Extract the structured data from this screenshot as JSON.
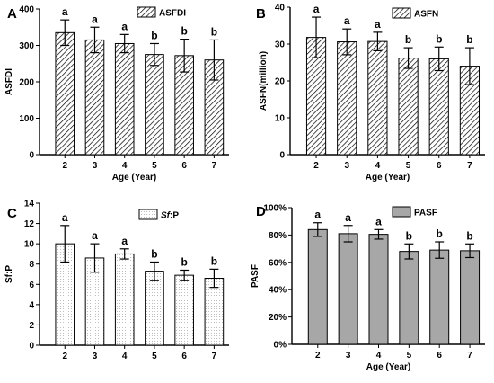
{
  "chart_data": [
    {
      "panel": "A",
      "type": "bar",
      "legend": "ASFDI",
      "categories": [
        "2",
        "3",
        "4",
        "5",
        "6",
        "7"
      ],
      "values": [
        335,
        315,
        305,
        275,
        272,
        260
      ],
      "errors": [
        35,
        35,
        25,
        30,
        45,
        55
      ],
      "letters": [
        "a",
        "a",
        "a",
        "b",
        "b",
        "b"
      ],
      "xlabel": "Age (Year)",
      "ylabel": "ASFDI",
      "ylim": [
        0,
        400
      ],
      "yticks": [
        "0",
        "100",
        "200",
        "300",
        "400"
      ],
      "fill": "hatch"
    },
    {
      "panel": "B",
      "type": "bar",
      "legend": "ASFN",
      "categories": [
        "2",
        "3",
        "4",
        "5",
        "6",
        "7"
      ],
      "values": [
        31.8,
        30.6,
        30.7,
        26.2,
        26.0,
        24.0
      ],
      "errors": [
        5.5,
        3.5,
        2.5,
        2.8,
        3.2,
        5.0
      ],
      "letters": [
        "a",
        "a",
        "a",
        "b",
        "b",
        "b"
      ],
      "xlabel": "Age (Year)",
      "ylabel": "ASFN(million)",
      "ylim": [
        0,
        40
      ],
      "yticks": [
        "0",
        "10",
        "20",
        "30",
        "40"
      ],
      "fill": "hatch"
    },
    {
      "panel": "C",
      "type": "bar",
      "legend_prefix": "Sf",
      "legend_suffix": ":P",
      "categories": [
        "2",
        "3",
        "4",
        "5",
        "6",
        "7"
      ],
      "values": [
        10.0,
        8.6,
        9.0,
        7.3,
        6.9,
        6.6
      ],
      "errors": [
        1.8,
        1.4,
        0.5,
        0.9,
        0.5,
        0.9
      ],
      "letters": [
        "a",
        "a",
        "a",
        "b",
        "b",
        "b"
      ],
      "xlabel": "",
      "ylabel": "Sf:P",
      "ylim": [
        0,
        14
      ],
      "yticks": [
        "0",
        "2",
        "4",
        "6",
        "8",
        "10",
        "12",
        "14"
      ],
      "fill": "dots"
    },
    {
      "panel": "D",
      "type": "bar",
      "legend": "PASF",
      "categories": [
        "2",
        "3",
        "4",
        "5",
        "6",
        "7"
      ],
      "values": [
        84,
        81,
        80.5,
        68,
        69,
        68.5
      ],
      "errors": [
        5,
        6,
        3.5,
        5.5,
        6,
        5
      ],
      "letters": [
        "a",
        "a",
        "a",
        "b",
        "b",
        "b"
      ],
      "xlabel": "Age (Year)",
      "ylabel": "PASF",
      "ylim": [
        0,
        100
      ],
      "yticks": [
        "0%",
        "20%",
        "40%",
        "60%",
        "80%",
        "100%"
      ],
      "fill": "gray"
    }
  ]
}
